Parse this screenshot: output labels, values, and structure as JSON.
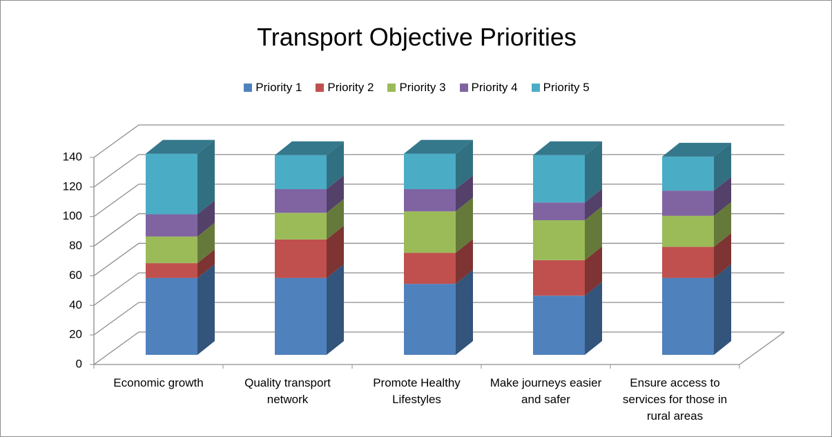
{
  "chart_data": {
    "type": "bar",
    "stacked": true,
    "three_d": true,
    "title": "Transport Objective Priorities",
    "categories": [
      "Economic growth",
      "Quality transport network",
      "Promote Healthy Lifestyles",
      "Make journeys easier and safer",
      "Ensure access to services for those in rural areas"
    ],
    "series": [
      {
        "name": "Priority 1",
        "color": "#4f81bd",
        "values": [
          52,
          52,
          48,
          40,
          52
        ]
      },
      {
        "name": "Priority 2",
        "color": "#c0504d",
        "values": [
          10,
          26,
          21,
          24,
          21
        ]
      },
      {
        "name": "Priority 3",
        "color": "#9bbb59",
        "values": [
          18,
          18,
          28,
          27,
          21
        ]
      },
      {
        "name": "Priority 4",
        "color": "#8064a2",
        "values": [
          15,
          16,
          15,
          12,
          17
        ]
      },
      {
        "name": "Priority 5",
        "color": "#4bacc6",
        "values": [
          41,
          23,
          24,
          32,
          23
        ]
      }
    ],
    "ylim": [
      0,
      140
    ],
    "yticks": [
      0,
      20,
      40,
      60,
      80,
      100,
      120,
      140
    ],
    "grid": true,
    "legend": "top"
  }
}
